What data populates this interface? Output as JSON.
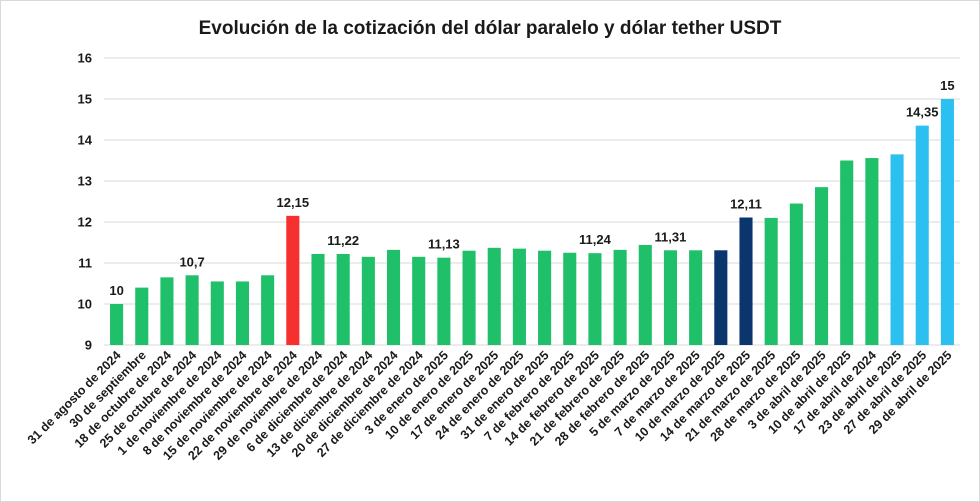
{
  "chart_data": {
    "type": "bar",
    "title": "Evolución de la cotización del dólar paralelo y dólar tether USDT",
    "xlabel": "",
    "ylabel": "",
    "ylim": [
      9,
      16
    ],
    "yticks": [
      9,
      10,
      11,
      12,
      13,
      14,
      15,
      16
    ],
    "grid": true,
    "legend": "none",
    "categories": [
      "31 de agosto de 2024",
      "30 de septiembre",
      "18 de octubre de 2024",
      "25 de octubre de 2024",
      "1 de noviembre de 2024",
      "8 de noviembre de 2024",
      "15 de noviembre de 2024",
      "22 de noviembre de 2024",
      "29 de noviembre de 2024",
      "6 de diciembre de 2024",
      "13 de diciembre de 2024",
      "20 de diciembre de 2024",
      "27 de diciembre de 2024",
      "3 de enero de 2025",
      "10 de enero de 2025",
      "17 de enero de 2025",
      "24 de enero de 2025",
      "31 de enero de 2025",
      "7 de febrero de 2025",
      "14 de febrero de 2025",
      "21 de febrero de 2025",
      "28 de febrero de 2025",
      "5 de marzo de 2025",
      "7 de marzo de 2025",
      "10 de marzo de 2025",
      "14 de marzo de 2025",
      "21 de marzo de 2025",
      "28 de marzo de 2025",
      "3 de abril de 2025",
      "10 de abril de 2025",
      "17 de abril de 2024",
      "23 de abril de 2025",
      "27 de abril de 2025",
      "29 de abril de 2025"
    ],
    "values": [
      10,
      10.4,
      10.65,
      10.7,
      10.55,
      10.55,
      10.7,
      12.15,
      11.22,
      11.22,
      11.15,
      11.32,
      11.15,
      11.13,
      11.3,
      11.37,
      11.35,
      11.3,
      11.25,
      11.24,
      11.32,
      11.44,
      11.31,
      11.31,
      11.31,
      12.11,
      12.1,
      12.45,
      12.85,
      13.5,
      13.56,
      13.65,
      14.35,
      15
    ],
    "colors": [
      "#20c06a",
      "#20c06a",
      "#20c06a",
      "#20c06a",
      "#20c06a",
      "#20c06a",
      "#20c06a",
      "#f5302e",
      "#20c06a",
      "#20c06a",
      "#20c06a",
      "#20c06a",
      "#20c06a",
      "#20c06a",
      "#20c06a",
      "#20c06a",
      "#20c06a",
      "#20c06a",
      "#20c06a",
      "#20c06a",
      "#20c06a",
      "#20c06a",
      "#20c06a",
      "#20c06a",
      "#0b356d",
      "#0b356d",
      "#20c06a",
      "#20c06a",
      "#20c06a",
      "#20c06a",
      "#20c06a",
      "#2bc0ef",
      "#2bc0ef",
      "#2bc0ef"
    ],
    "data_labels": [
      {
        "index": 0,
        "text": "10"
      },
      {
        "index": 3,
        "text": "10,7"
      },
      {
        "index": 7,
        "text": "12,15"
      },
      {
        "index": 9,
        "text": "11,22"
      },
      {
        "index": 13,
        "text": "11,13"
      },
      {
        "index": 19,
        "text": "11,24"
      },
      {
        "index": 22,
        "text": "11,31"
      },
      {
        "index": 25,
        "text": "12,11"
      },
      {
        "index": 32,
        "text": "14,35"
      },
      {
        "index": 33,
        "text": "15"
      }
    ],
    "gridline_color": "#d9d9d9"
  }
}
